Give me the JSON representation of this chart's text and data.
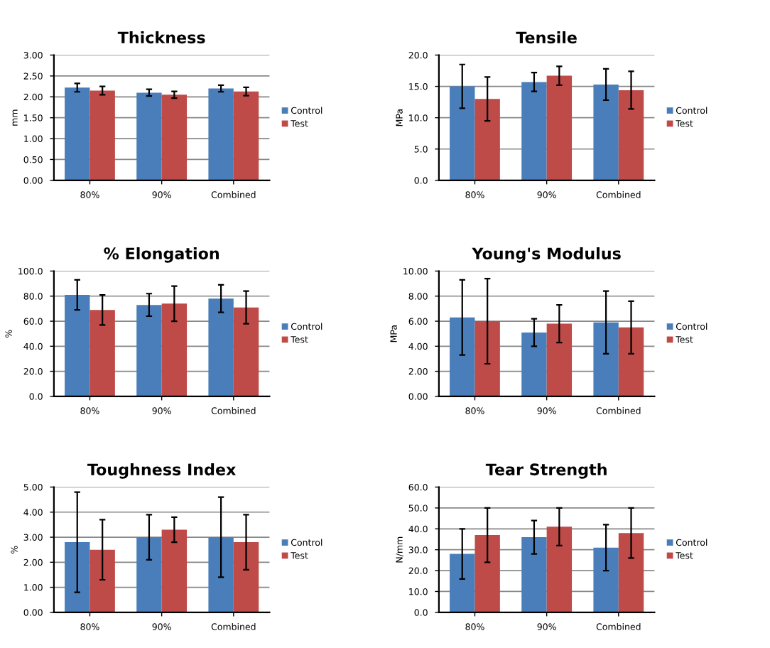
{
  "chart_data": [
    {
      "type": "bar",
      "title": "Thickness",
      "ylabel": "mm",
      "categories": [
        "80%",
        "90%",
        "Combined"
      ],
      "ylim": [
        0,
        3
      ],
      "yticks": [
        {
          "value": 0,
          "label": "0.00"
        },
        {
          "value": 0.5,
          "label": "0.50"
        },
        {
          "value": 1,
          "label": "1.00"
        },
        {
          "value": 1.5,
          "label": "1.50"
        },
        {
          "value": 2,
          "label": "2.00"
        },
        {
          "value": 2.5,
          "label": "2.50"
        },
        {
          "value": 3,
          "label": "3.00"
        }
      ],
      "grid": "y",
      "legend": "right",
      "series": [
        {
          "name": "Control",
          "color": "#4a7ebb",
          "values": [
            2.22,
            2.1,
            2.2
          ],
          "errors": [
            0.1,
            0.08,
            0.08
          ]
        },
        {
          "name": "Test",
          "color": "#be4b48",
          "values": [
            2.15,
            2.05,
            2.13
          ],
          "errors": [
            0.1,
            0.08,
            0.1
          ]
        }
      ]
    },
    {
      "type": "bar",
      "title": "Tensile",
      "ylabel": "MPa",
      "categories": [
        "80%",
        "90%",
        "Combined"
      ],
      "ylim": [
        0,
        20
      ],
      "yticks": [
        {
          "value": 0,
          "label": "0.0"
        },
        {
          "value": 5,
          "label": "5.0"
        },
        {
          "value": 10,
          "label": "10.0"
        },
        {
          "value": 15,
          "label": "15.0"
        },
        {
          "value": 20,
          "label": "20.0"
        }
      ],
      "grid": "y",
      "legend": "right",
      "series": [
        {
          "name": "Control",
          "color": "#4a7ebb",
          "values": [
            15.0,
            15.7,
            15.3
          ],
          "errors": [
            3.5,
            1.5,
            2.5
          ]
        },
        {
          "name": "Test",
          "color": "#be4b48",
          "values": [
            13.0,
            16.7,
            14.4
          ],
          "errors": [
            3.5,
            1.5,
            3.0
          ]
        }
      ]
    },
    {
      "type": "bar",
      "title": "% Elongation",
      "ylabel": "%",
      "categories": [
        "80%",
        "90%",
        "Combined"
      ],
      "ylim": [
        0,
        100
      ],
      "yticks": [
        {
          "value": 0,
          "label": "0.0"
        },
        {
          "value": 20,
          "label": "20.0"
        },
        {
          "value": 40,
          "label": "40.0"
        },
        {
          "value": 60,
          "label": "60.0"
        },
        {
          "value": 80,
          "label": "80.0"
        },
        {
          "value": 100,
          "label": "100.0"
        }
      ],
      "grid": "y",
      "legend": "right",
      "series": [
        {
          "name": "Control",
          "color": "#4a7ebb",
          "values": [
            81,
            73,
            78
          ],
          "errors": [
            12,
            9,
            11
          ]
        },
        {
          "name": "Test",
          "color": "#be4b48",
          "values": [
            69,
            74,
            71
          ],
          "errors": [
            12,
            14,
            13
          ]
        }
      ]
    },
    {
      "type": "bar",
      "title": "Young's Modulus",
      "ylabel": "MPa",
      "categories": [
        "80%",
        "90%",
        "Combined"
      ],
      "ylim": [
        0,
        10
      ],
      "yticks": [
        {
          "value": 0,
          "label": "0.00"
        },
        {
          "value": 2,
          "label": "2.00"
        },
        {
          "value": 4,
          "label": "4.00"
        },
        {
          "value": 6,
          "label": "6.00"
        },
        {
          "value": 8,
          "label": "8.00"
        },
        {
          "value": 10,
          "label": "10.00"
        }
      ],
      "grid": "y",
      "legend": "right",
      "series": [
        {
          "name": "Control",
          "color": "#4a7ebb",
          "values": [
            6.3,
            5.1,
            5.9
          ],
          "errors": [
            3.0,
            1.1,
            2.5
          ]
        },
        {
          "name": "Test",
          "color": "#be4b48",
          "values": [
            6.0,
            5.8,
            5.5
          ],
          "errors": [
            3.4,
            1.5,
            2.1
          ]
        }
      ]
    },
    {
      "type": "bar",
      "title": "Toughness Index",
      "ylabel": "%",
      "categories": [
        "80%",
        "90%",
        "Combined"
      ],
      "ylim": [
        0,
        5
      ],
      "yticks": [
        {
          "value": 0,
          "label": "0.00"
        },
        {
          "value": 1,
          "label": "1.00"
        },
        {
          "value": 2,
          "label": "2.00"
        },
        {
          "value": 3,
          "label": "3.00"
        },
        {
          "value": 4,
          "label": "4.00"
        },
        {
          "value": 5,
          "label": "5.00"
        }
      ],
      "grid": "y",
      "legend": "right",
      "series": [
        {
          "name": "Control",
          "color": "#4a7ebb",
          "values": [
            2.8,
            3.0,
            3.0
          ],
          "errors": [
            2.0,
            0.9,
            1.6
          ]
        },
        {
          "name": "Test",
          "color": "#be4b48",
          "values": [
            2.5,
            3.3,
            2.8
          ],
          "errors": [
            1.2,
            0.5,
            1.1
          ]
        }
      ]
    },
    {
      "type": "bar",
      "title": "Tear Strength",
      "ylabel": "N/mm",
      "categories": [
        "80%",
        "90%",
        "Combined"
      ],
      "ylim": [
        0,
        60
      ],
      "yticks": [
        {
          "value": 0,
          "label": "0.0"
        },
        {
          "value": 10,
          "label": "10.0"
        },
        {
          "value": 20,
          "label": "20.0"
        },
        {
          "value": 30,
          "label": "30.0"
        },
        {
          "value": 40,
          "label": "40.0"
        },
        {
          "value": 50,
          "label": "50.0"
        },
        {
          "value": 60,
          "label": "60.0"
        }
      ],
      "grid": "y",
      "legend": "right",
      "series": [
        {
          "name": "Control",
          "color": "#4a7ebb",
          "values": [
            28,
            36,
            31
          ],
          "errors": [
            12,
            8,
            11
          ]
        },
        {
          "name": "Test",
          "color": "#be4b48",
          "values": [
            37,
            41,
            38
          ],
          "errors": [
            13,
            9,
            12
          ]
        }
      ]
    }
  ]
}
